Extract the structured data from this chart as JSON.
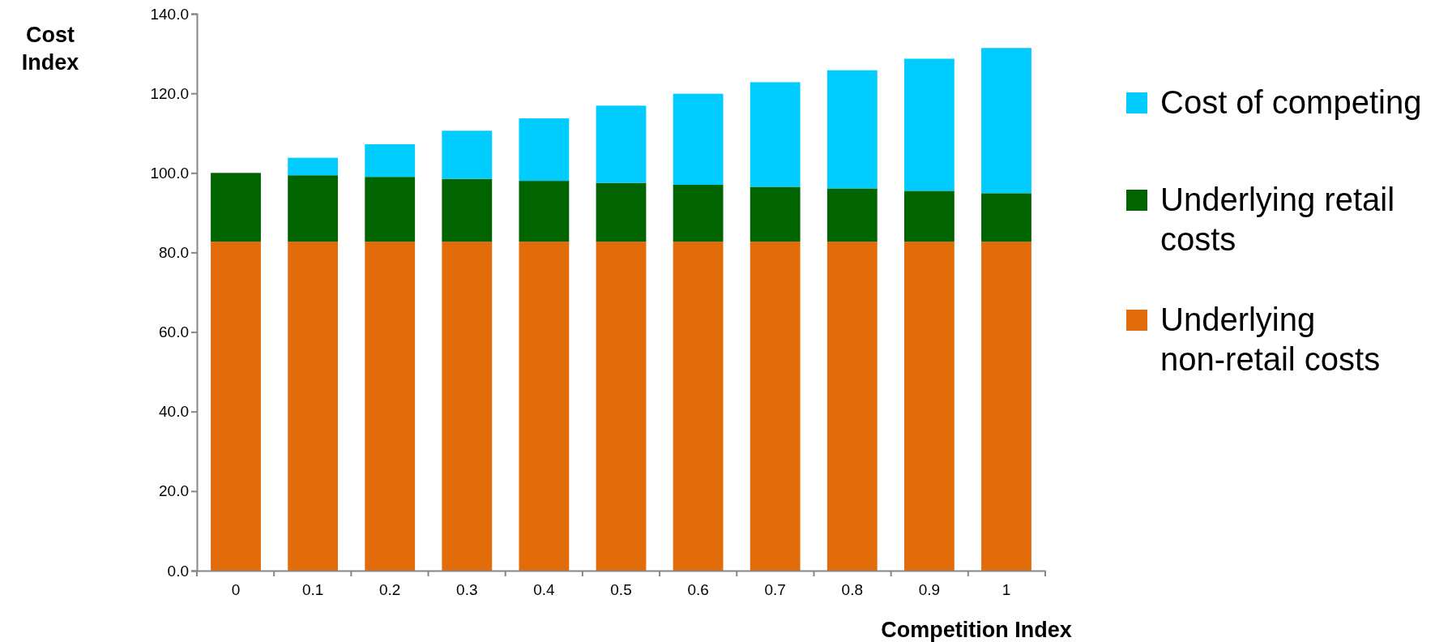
{
  "chart_data": {
    "type": "bar",
    "stacked": true,
    "xlabel": "Competition Index",
    "ylabel": "Cost Index",
    "categories": [
      "0",
      "0.1",
      "0.2",
      "0.3",
      "0.4",
      "0.5",
      "0.6",
      "0.7",
      "0.8",
      "0.9",
      "1"
    ],
    "series": [
      {
        "name": "Underlying non-retail costs",
        "color": "#e36c0a",
        "values": [
          82.7,
          82.7,
          82.7,
          82.7,
          82.7,
          82.7,
          82.7,
          82.7,
          82.7,
          82.7,
          82.7
        ]
      },
      {
        "name": "Underlying retail costs",
        "color": "#006400",
        "values": [
          17.3,
          16.7,
          16.3,
          15.8,
          15.3,
          14.8,
          14.3,
          13.8,
          13.4,
          12.8,
          12.2
        ]
      },
      {
        "name": "Cost of competing",
        "color": "#00ccff",
        "values": [
          0,
          4.4,
          8.2,
          12.1,
          15.7,
          19.4,
          22.9,
          26.3,
          29.7,
          33.2,
          36.5
        ]
      }
    ],
    "ylim": [
      0,
      140
    ],
    "yticks": [
      {
        "value": 0,
        "label": "0.0"
      },
      {
        "value": 20,
        "label": "20.0"
      },
      {
        "value": 40,
        "label": "40.0"
      },
      {
        "value": 60,
        "label": "60.0"
      },
      {
        "value": 80,
        "label": "80.0"
      },
      {
        "value": 100,
        "label": "100.0"
      },
      {
        "value": 120,
        "label": "120.0"
      },
      {
        "value": 140,
        "label": "140.0"
      }
    ],
    "grid": false,
    "legend": "right"
  }
}
